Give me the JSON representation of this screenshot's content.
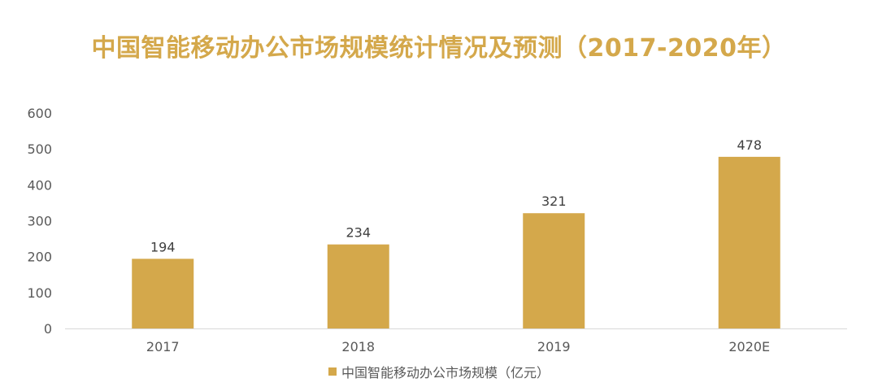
{
  "chart_data": {
    "type": "bar",
    "title": "中国智能移动办公市场规模统计情况及预测（2017-2020年）",
    "categories": [
      "2017",
      "2018",
      "2019",
      "2020E"
    ],
    "series": [
      {
        "name": "中国智能移动办公市场规模（亿元）",
        "values": [
          194,
          234,
          321,
          478
        ]
      }
    ],
    "data_labels": [
      "194",
      "234",
      "321",
      "478"
    ],
    "ylim": [
      0,
      600
    ],
    "yticks": [
      0,
      100,
      200,
      300,
      400,
      500,
      600
    ],
    "ytick_labels": [
      "0",
      "100",
      "200",
      "300",
      "400",
      "500",
      "600"
    ],
    "xlabel": "",
    "ylabel": "",
    "grid": false,
    "legend_position": "bottom",
    "colors": {
      "bar": "#d4a84b",
      "title": "#d4a84b",
      "axis": "#d9d9d9",
      "text": "#595959"
    }
  }
}
